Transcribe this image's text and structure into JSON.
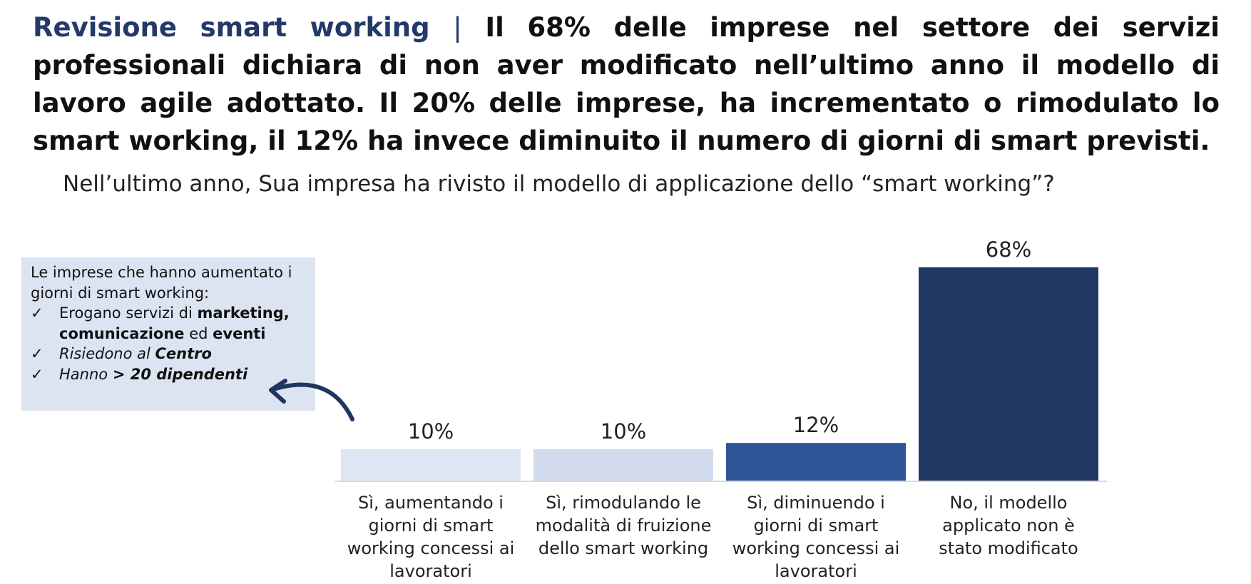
{
  "headline": {
    "topic": "Revisione smart working",
    "separator": "|",
    "text": "Il 68% delle imprese nel settore dei servizi professionali dichiara di non aver modificato nell’ultimo anno il modello di lavoro agile adottato. Il 20% delle imprese, ha incrementato o rimodulato lo smart working, il 12% ha invece diminuito il numero di giorni di smart previsti."
  },
  "question": "Nell’ultimo anno, Sua impresa ha rivisto il modello di applicazione dello “smart working”?",
  "note": {
    "intro": "Le imprese che hanno aumentato i giorni di smart working:",
    "check_symbol": "✓",
    "items": [
      {
        "parts": [
          {
            "text": "Erogano servizi di ",
            "bold": false
          },
          {
            "text": "marketing, comunicazione",
            "bold": true
          },
          {
            "text": " ed ",
            "bold": false
          },
          {
            "text": "eventi",
            "bold": true
          }
        ]
      },
      {
        "italic": true,
        "parts": [
          {
            "text": "Risiedono al ",
            "bold": false
          },
          {
            "text": "Centro",
            "bold": true
          }
        ]
      },
      {
        "italic": true,
        "parts": [
          {
            "text": "Hanno ",
            "bold": false
          },
          {
            "text": "> 20 dipendenti",
            "bold": true
          }
        ]
      }
    ]
  },
  "chart_data": {
    "type": "bar",
    "title": "",
    "xlabel": "",
    "ylabel": "",
    "ylim": [
      0,
      100
    ],
    "grid": false,
    "categories": [
      "Sì, aumentando i giorni di smart working concessi ai lavoratori",
      "Sì, rimodulando le modalità di fruizione dello smart working",
      "Sì, diminuendo i giorni di smart working concessi ai lavoratori",
      "No, il modello applicato non è stato modificato"
    ],
    "values": [
      10,
      10,
      12,
      68
    ],
    "value_labels": [
      "10%",
      "10%",
      "12%",
      "68%"
    ],
    "bar_colors": [
      "#dfe6f3",
      "#d2dbee",
      "#2f5597",
      "#203864"
    ]
  },
  "colors": {
    "accent": "#233a68",
    "note_background": "#dce4f2",
    "arrow": "#1f3560",
    "baseline": "#d9d9d9"
  },
  "icons": {
    "arrow": "curved-arrow-icon",
    "check": "check-icon"
  }
}
